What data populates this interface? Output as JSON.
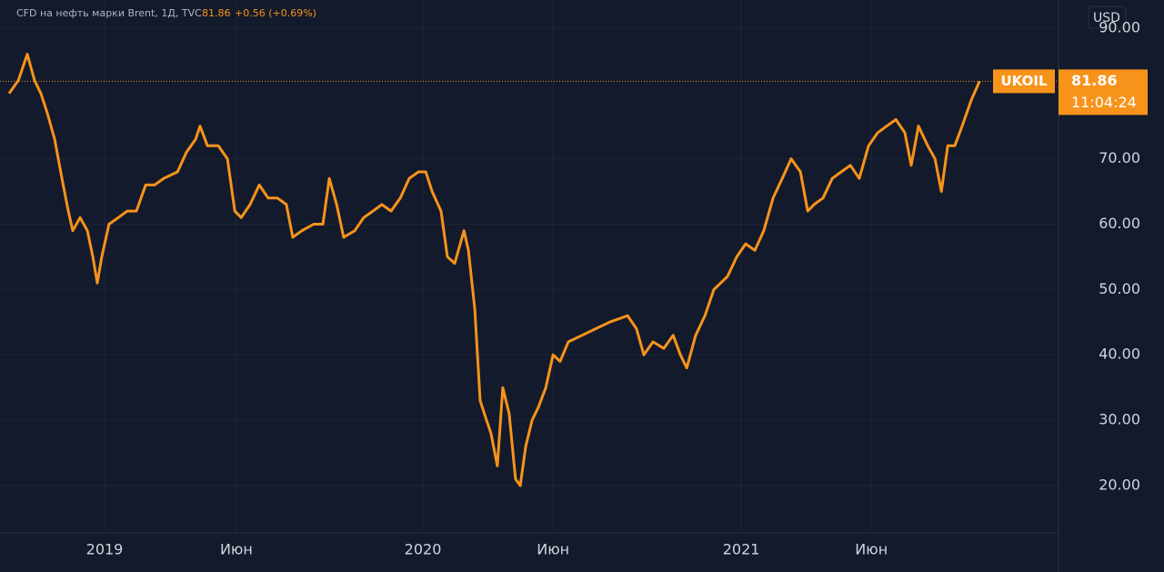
{
  "chart_data": {
    "type": "line",
    "title": "CFD на нефть марки Brent, 1Д, TVC",
    "last_price": "81.86",
    "change": "+0.56 (+0.69%)",
    "currency": "USD",
    "countdown": "11:04:24",
    "grid": true,
    "xlim": [
      2018.7,
      2021.994
    ],
    "ylim": [
      12.9,
      94.3
    ],
    "xticks": [
      2019,
      {
        "value": 2019.414,
        "label": "Июн"
      },
      2020,
      {
        "value": 2020.409,
        "label": "Июн"
      },
      2021,
      {
        "value": 2021.409,
        "label": "Июн"
      }
    ],
    "yticks": [
      {
        "value": 20,
        "label": "20.00"
      },
      {
        "value": 30,
        "label": "30.00"
      },
      {
        "value": 40,
        "label": "40.00"
      },
      {
        "value": 50,
        "label": "50.00"
      },
      {
        "value": 60,
        "label": "60.00"
      },
      {
        "value": 70,
        "label": "70.00"
      },
      {
        "value": 90,
        "label": "90.00"
      }
    ],
    "x": [
      2018.7,
      2018.729,
      2018.757,
      2018.78,
      2018.8,
      2018.82,
      2018.843,
      2018.866,
      2018.886,
      2018.9,
      2018.923,
      2018.946,
      2018.963,
      2018.977,
      2018.991,
      2019.014,
      2019.043,
      2019.071,
      2019.1,
      2019.129,
      2019.157,
      2019.186,
      2019.229,
      2019.257,
      2019.286,
      2019.3,
      2019.323,
      2019.357,
      2019.386,
      2019.409,
      2019.429,
      2019.457,
      2019.486,
      2019.514,
      2019.543,
      2019.571,
      2019.591,
      2019.62,
      2019.657,
      2019.686,
      2019.706,
      2019.729,
      2019.751,
      2019.786,
      2019.814,
      2019.843,
      2019.871,
      2019.9,
      2019.929,
      2019.957,
      2019.986,
      2020.009,
      2020.029,
      2020.057,
      2020.077,
      2020.1,
      2020.129,
      2020.143,
      2020.163,
      2020.18,
      2020.2,
      2020.214,
      2020.234,
      2020.251,
      2020.271,
      2020.291,
      2020.306,
      2020.323,
      2020.343,
      2020.363,
      2020.386,
      2020.409,
      2020.431,
      2020.457,
      2020.5,
      2020.543,
      2020.586,
      2020.643,
      2020.671,
      2020.694,
      2020.723,
      2020.757,
      2020.786,
      2020.809,
      2020.829,
      2020.857,
      2020.886,
      2020.914,
      2020.957,
      2020.986,
      2021.014,
      2021.043,
      2021.071,
      2021.1,
      2021.129,
      2021.157,
      2021.186,
      2021.209,
      2021.229,
      2021.257,
      2021.286,
      2021.314,
      2021.343,
      2021.371,
      2021.4,
      2021.429,
      2021.457,
      2021.486,
      2021.514,
      2021.534,
      2021.557,
      2021.586,
      2021.609,
      2021.629,
      2021.649,
      2021.671,
      2021.694,
      2021.723,
      2021.749
    ],
    "series": [
      {
        "name": "UKOIL",
        "color": "#f7931a",
        "values": [
          80,
          82,
          86,
          82,
          80,
          77,
          73,
          67,
          62,
          59,
          61,
          59,
          55,
          51,
          55,
          60,
          61,
          62,
          62,
          66,
          66,
          67,
          68,
          71,
          73,
          75,
          72,
          72,
          70,
          62,
          61,
          63,
          66,
          64,
          64,
          63,
          58,
          59,
          60,
          60,
          67,
          63,
          58,
          59,
          61,
          62,
          63,
          62,
          64,
          67,
          68,
          68,
          65,
          62,
          55,
          54,
          59,
          56,
          47,
          33,
          30,
          28,
          23,
          35,
          31,
          21,
          20,
          26,
          30,
          32,
          35,
          40,
          39,
          42,
          43,
          44,
          45,
          46,
          44,
          40,
          42,
          41,
          43,
          40,
          38,
          43,
          46,
          50,
          52,
          55,
          57,
          56,
          59,
          64,
          67,
          70,
          68,
          62,
          63,
          64,
          67,
          68,
          69,
          67,
          72,
          74,
          75,
          76,
          74,
          69,
          75,
          72,
          70,
          65,
          72,
          72,
          75,
          79,
          81.86
        ]
      }
    ]
  }
}
